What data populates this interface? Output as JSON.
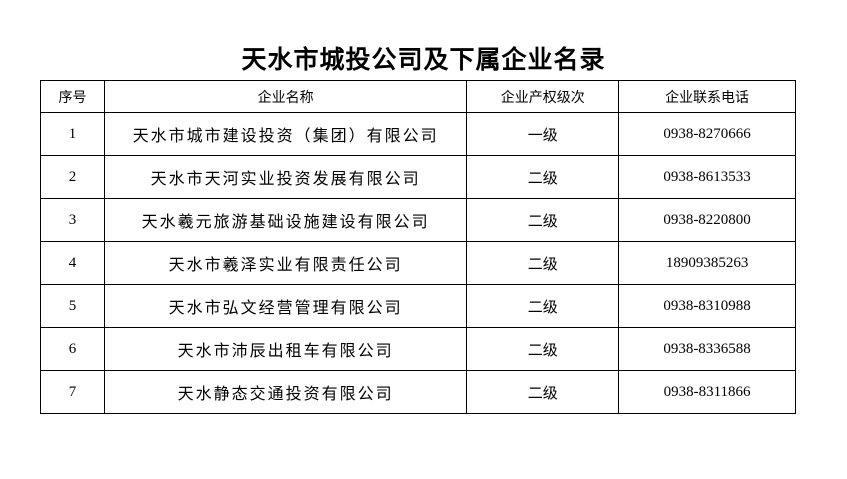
{
  "title": "天水市城投公司及下属企业名录",
  "table": {
    "headers": [
      "序号",
      "企业名称",
      "企业产权级次",
      "企业联系电话"
    ],
    "rows": [
      {
        "no": "1",
        "name": "天水市城市建设投资（集团）有限公司",
        "level": "一级",
        "phone": "0938-8270666"
      },
      {
        "no": "2",
        "name": "天水市天河实业投资发展有限公司",
        "level": "二级",
        "phone": "0938-8613533"
      },
      {
        "no": "3",
        "name": "天水羲元旅游基础设施建设有限公司",
        "level": "二级",
        "phone": "0938-8220800"
      },
      {
        "no": "4",
        "name": "天水市羲泽实业有限责任公司",
        "level": "二级",
        "phone": "18909385263"
      },
      {
        "no": "5",
        "name": "天水市弘文经营管理有限公司",
        "level": "二级",
        "phone": "0938-8310988"
      },
      {
        "no": "6",
        "name": "天水市沛辰出租车有限公司",
        "level": "二级",
        "phone": "0938-8336588"
      },
      {
        "no": "7",
        "name": "天水静态交通投资有限公司",
        "level": "二级",
        "phone": "0938-8311866"
      }
    ]
  }
}
